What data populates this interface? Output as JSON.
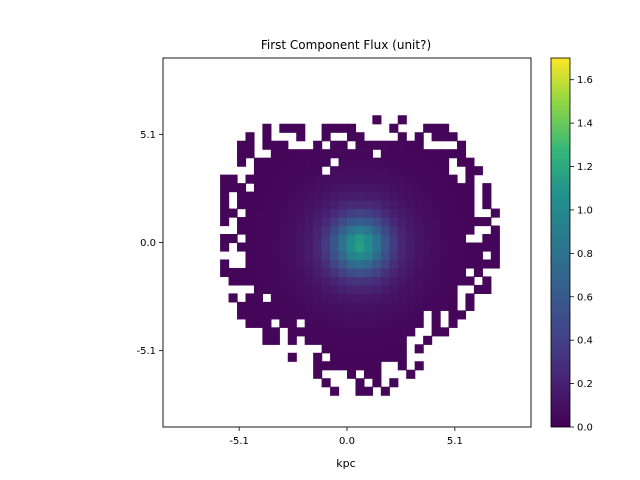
{
  "chart_data": {
    "type": "heatmap",
    "title": "First Component Flux (unit?)",
    "xlabel": "kpc",
    "ylabel": "",
    "xlim": [
      -8.7,
      8.7
    ],
    "ylim": [
      -8.7,
      8.7
    ],
    "x_ticks": [
      -5.1,
      0.0,
      5.1
    ],
    "x_tick_labels": [
      "-5.1",
      "0.0",
      "5.1"
    ],
    "y_ticks": [
      5.1,
      0.0,
      -5.1
    ],
    "y_tick_labels": [
      "5.1",
      "0.0",
      "-5.1"
    ],
    "colormap": "viridis",
    "color_range": [
      0.0,
      1.7
    ],
    "colorbar_ticks": [
      0.0,
      0.2,
      0.4,
      0.6,
      0.8,
      1.0,
      1.2,
      1.4,
      1.6
    ],
    "colorbar_tick_labels": [
      "0.0",
      "0.2",
      "0.4",
      "0.6",
      "0.8",
      "1.0",
      "1.2",
      "1.4",
      "1.6"
    ],
    "peak_position": [
      0.4,
      -0.3
    ],
    "peak_value": 0.85,
    "grid": false
  }
}
